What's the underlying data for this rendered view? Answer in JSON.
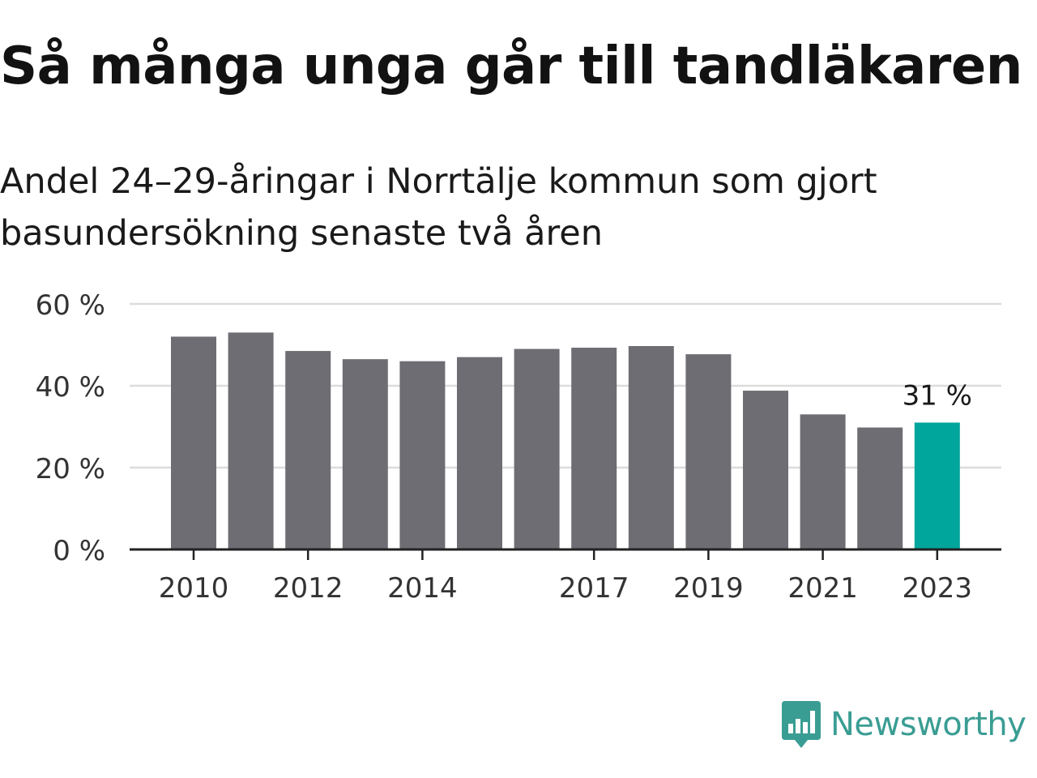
{
  "title": "Så många unga går till tandläkaren",
  "subtitle": "Andel 24–29-åringar i Norrtälje kommun som gjort basundersökning senaste två åren",
  "brand": {
    "name": "Newsworthy",
    "color": "#3a9d93",
    "icon": "bar-chart-speech-bubble-icon"
  },
  "colors": {
    "bar": "#6e6d73",
    "highlight": "#00a59b",
    "grid": "#dcdcdc",
    "axis": "#222222"
  },
  "chart_data": {
    "type": "bar",
    "title": "Så många unga går till tandläkaren",
    "subtitle": "Andel 24–29-åringar i Norrtälje kommun som gjort basundersökning senaste två åren",
    "categories": [
      "2010",
      "2011",
      "2012",
      "2013",
      "2014",
      "2015",
      "2016",
      "2017",
      "2018",
      "2019",
      "2020",
      "2021",
      "2022",
      "2023"
    ],
    "values": [
      52,
      53,
      48.5,
      46.5,
      46,
      47,
      49,
      49.3,
      49.7,
      47.7,
      38.8,
      33,
      29.8,
      31
    ],
    "unit": "%",
    "ylim": [
      0,
      60
    ],
    "yticks": [
      0,
      20,
      40,
      60
    ],
    "ytick_labels": [
      "0 %",
      "20 %",
      "40 %",
      "60 %"
    ],
    "xtick_labels": [
      "2010",
      "2012",
      "2014",
      "2017",
      "2019",
      "2021",
      "2023"
    ],
    "highlight_category": "2023",
    "annotation": {
      "category": "2023",
      "label": "31 %"
    },
    "grid": true,
    "legend": "none"
  }
}
